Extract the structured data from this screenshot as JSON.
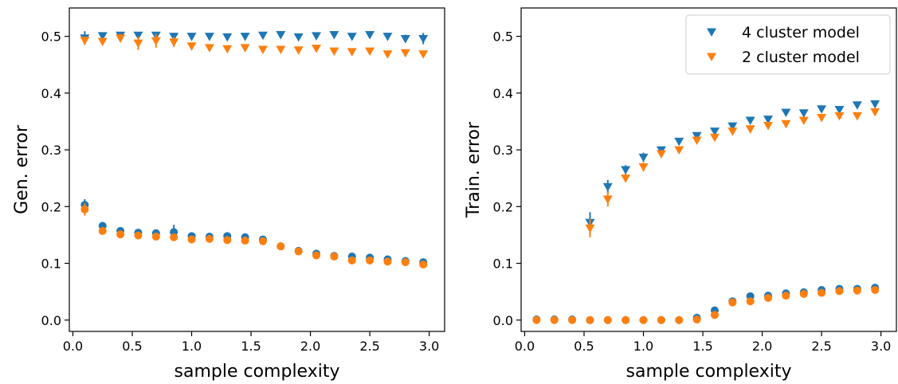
{
  "colors": {
    "series_a": "#1f77b4",
    "series_b": "#ff7f0e"
  },
  "legend": {
    "items": [
      {
        "label": "4 cluster model",
        "marker": "triangle-down",
        "color": "#1f77b4"
      },
      {
        "label": "2 cluster model",
        "marker": "triangle-down",
        "color": "#ff7f0e"
      }
    ]
  },
  "chart_data": [
    {
      "type": "scatter",
      "title": "",
      "xlabel": "sample complexity",
      "ylabel": "Gen. error",
      "xlim": [
        -0.03,
        3.13
      ],
      "ylim": [
        -0.02,
        0.55
      ],
      "xticks": [
        0.0,
        0.5,
        1.0,
        1.5,
        2.0,
        2.5,
        3.0
      ],
      "xtick_labels": [
        "0.0",
        "0.5",
        "1.0",
        "1.5",
        "2.0",
        "2.5",
        "3.0"
      ],
      "yticks": [
        0.0,
        0.1,
        0.2,
        0.3,
        0.4,
        0.5
      ],
      "ytick_labels": [
        "0.0",
        "0.1",
        "0.2",
        "0.3",
        "0.4",
        "0.5"
      ],
      "grid": false,
      "legend": null,
      "series": [
        {
          "group": "4 cluster model",
          "marker": "triangle-down",
          "color": "#1f77b4",
          "x": [
            0.1,
            0.25,
            0.4,
            0.55,
            0.7,
            0.85,
            1.0,
            1.15,
            1.3,
            1.45,
            1.6,
            1.75,
            1.9,
            2.05,
            2.2,
            2.35,
            2.5,
            2.65,
            2.8,
            2.95
          ],
          "y": [
            0.497,
            0.501,
            0.502,
            0.502,
            0.502,
            0.5,
            0.5,
            0.5,
            0.499,
            0.5,
            0.502,
            0.503,
            0.499,
            0.501,
            0.503,
            0.5,
            0.503,
            0.5,
            0.496,
            0.496
          ],
          "err": [
            0.012,
            0.004,
            0.004,
            0.004,
            0.004,
            0.006,
            0.005,
            0.003,
            0.003,
            0.004,
            0.006,
            0.004,
            0.003,
            0.006,
            0.004,
            0.003,
            0.003,
            0.003,
            0.007,
            0.01
          ]
        },
        {
          "group": "2 cluster model",
          "marker": "triangle-down",
          "color": "#ff7f0e",
          "x": [
            0.1,
            0.25,
            0.4,
            0.55,
            0.7,
            0.85,
            1.0,
            1.15,
            1.3,
            1.45,
            1.6,
            1.75,
            1.9,
            2.05,
            2.2,
            2.35,
            2.5,
            2.65,
            2.8,
            2.95
          ],
          "y": [
            0.493,
            0.491,
            0.497,
            0.488,
            0.492,
            0.49,
            0.483,
            0.48,
            0.478,
            0.48,
            0.477,
            0.477,
            0.476,
            0.479,
            0.474,
            0.473,
            0.474,
            0.469,
            0.471,
            0.469
          ],
          "err": [
            0.006,
            0.005,
            0.007,
            0.012,
            0.012,
            0.009,
            0.006,
            0.004,
            0.004,
            0.004,
            0.004,
            0.004,
            0.004,
            0.004,
            0.004,
            0.004,
            0.004,
            0.004,
            0.004,
            0.004
          ]
        },
        {
          "group": "4 cluster model",
          "marker": "circle",
          "color": "#1f77b4",
          "x": [
            0.1,
            0.25,
            0.4,
            0.55,
            0.7,
            0.85,
            1.0,
            1.15,
            1.3,
            1.45,
            1.6,
            1.75,
            1.9,
            2.05,
            2.2,
            2.35,
            2.5,
            2.65,
            2.8,
            2.95
          ],
          "y": [
            0.203,
            0.166,
            0.157,
            0.154,
            0.153,
            0.155,
            0.148,
            0.147,
            0.148,
            0.146,
            0.142,
            0.13,
            0.122,
            0.117,
            0.113,
            0.112,
            0.11,
            0.107,
            0.104,
            0.102
          ],
          "err": [
            0.01,
            0.005,
            0.006,
            0.004,
            0.004,
            0.013,
            0.004,
            0.004,
            0.004,
            0.004,
            0.004,
            0.004,
            0.004,
            0.003,
            0.003,
            0.003,
            0.003,
            0.003,
            0.003,
            0.003
          ]
        },
        {
          "group": "2 cluster model",
          "marker": "circle",
          "color": "#ff7f0e",
          "x": [
            0.1,
            0.25,
            0.4,
            0.55,
            0.7,
            0.85,
            1.0,
            1.15,
            1.3,
            1.45,
            1.6,
            1.75,
            1.9,
            2.05,
            2.2,
            2.35,
            2.5,
            2.65,
            2.8,
            2.95
          ],
          "y": [
            0.195,
            0.157,
            0.151,
            0.149,
            0.147,
            0.146,
            0.142,
            0.143,
            0.141,
            0.14,
            0.139,
            0.13,
            0.121,
            0.114,
            0.112,
            0.105,
            0.105,
            0.103,
            0.102,
            0.098
          ],
          "err": [
            0.011,
            0.006,
            0.006,
            0.004,
            0.004,
            0.005,
            0.004,
            0.004,
            0.004,
            0.004,
            0.004,
            0.004,
            0.004,
            0.003,
            0.003,
            0.003,
            0.003,
            0.003,
            0.003,
            0.003
          ]
        }
      ]
    },
    {
      "type": "scatter",
      "title": "",
      "xlabel": "sample complexity",
      "ylabel": "Train. error",
      "xlim": [
        -0.03,
        3.13
      ],
      "ylim": [
        -0.02,
        0.55
      ],
      "xticks": [
        0.0,
        0.5,
        1.0,
        1.5,
        2.0,
        2.5,
        3.0
      ],
      "xtick_labels": [
        "0.0",
        "0.5",
        "1.0",
        "1.5",
        "2.0",
        "2.5",
        "3.0"
      ],
      "yticks": [
        0.0,
        0.1,
        0.2,
        0.3,
        0.4,
        0.5
      ],
      "ytick_labels": [
        "0.0",
        "0.1",
        "0.2",
        "0.3",
        "0.4",
        "0.5"
      ],
      "grid": false,
      "legend": "top-right",
      "series": [
        {
          "group": "4 cluster model",
          "marker": "triangle-down",
          "color": "#1f77b4",
          "x": [
            0.55,
            0.7,
            0.85,
            1.0,
            1.15,
            1.3,
            1.45,
            1.6,
            1.75,
            1.9,
            2.05,
            2.2,
            2.35,
            2.5,
            2.65,
            2.8,
            2.95
          ],
          "y": [
            0.172,
            0.235,
            0.265,
            0.287,
            0.3,
            0.315,
            0.325,
            0.333,
            0.342,
            0.352,
            0.354,
            0.366,
            0.365,
            0.372,
            0.371,
            0.379,
            0.381
          ],
          "err": [
            0.018,
            0.012,
            0.008,
            0.008,
            0.004,
            0.004,
            0.004,
            0.004,
            0.004,
            0.004,
            0.004,
            0.004,
            0.004,
            0.004,
            0.004,
            0.004,
            0.004
          ]
        },
        {
          "group": "2 cluster model",
          "marker": "triangle-down",
          "color": "#ff7f0e",
          "x": [
            0.55,
            0.7,
            0.85,
            1.0,
            1.15,
            1.3,
            1.45,
            1.6,
            1.75,
            1.9,
            2.05,
            2.2,
            2.35,
            2.5,
            2.65,
            2.8,
            2.95
          ],
          "y": [
            0.162,
            0.213,
            0.25,
            0.27,
            0.293,
            0.3,
            0.317,
            0.322,
            0.333,
            0.337,
            0.343,
            0.346,
            0.352,
            0.357,
            0.36,
            0.36,
            0.367
          ],
          "err": [
            0.016,
            0.013,
            0.005,
            0.008,
            0.004,
            0.004,
            0.004,
            0.004,
            0.004,
            0.004,
            0.004,
            0.004,
            0.004,
            0.004,
            0.004,
            0.004,
            0.004
          ]
        },
        {
          "group": "4 cluster model",
          "marker": "circle",
          "color": "#1f77b4",
          "x": [
            0.1,
            0.25,
            0.4,
            0.55,
            0.7,
            0.85,
            1.0,
            1.15,
            1.3,
            1.45,
            1.6,
            1.75,
            1.9,
            2.05,
            2.2,
            2.35,
            2.5,
            2.65,
            2.8,
            2.95
          ],
          "y": [
            0.001,
            0.001,
            0.001,
            0.0,
            0.0,
            0.0,
            0.0,
            0.0,
            0.0,
            0.004,
            0.017,
            0.033,
            0.042,
            0.043,
            0.047,
            0.049,
            0.053,
            0.055,
            0.055,
            0.057
          ],
          "err": [
            0.002,
            0.002,
            0.002,
            0.001,
            0.001,
            0.001,
            0.001,
            0.001,
            0.001,
            0.004,
            0.005,
            0.003,
            0.003,
            0.003,
            0.003,
            0.003,
            0.003,
            0.003,
            0.003,
            0.003
          ]
        },
        {
          "group": "2 cluster model",
          "marker": "circle",
          "color": "#ff7f0e",
          "x": [
            0.1,
            0.25,
            0.4,
            0.55,
            0.7,
            0.85,
            1.0,
            1.15,
            1.3,
            1.45,
            1.6,
            1.75,
            1.9,
            2.05,
            2.2,
            2.35,
            2.5,
            2.65,
            2.8,
            2.95
          ],
          "y": [
            0.0,
            0.0,
            0.0,
            0.0,
            0.0,
            0.0,
            0.0,
            0.0,
            0.0,
            0.001,
            0.009,
            0.031,
            0.033,
            0.039,
            0.043,
            0.046,
            0.048,
            0.051,
            0.052,
            0.053
          ],
          "err": [
            0.001,
            0.001,
            0.001,
            0.001,
            0.001,
            0.001,
            0.001,
            0.001,
            0.001,
            0.002,
            0.004,
            0.003,
            0.003,
            0.003,
            0.003,
            0.003,
            0.003,
            0.003,
            0.003,
            0.003
          ]
        }
      ]
    }
  ]
}
